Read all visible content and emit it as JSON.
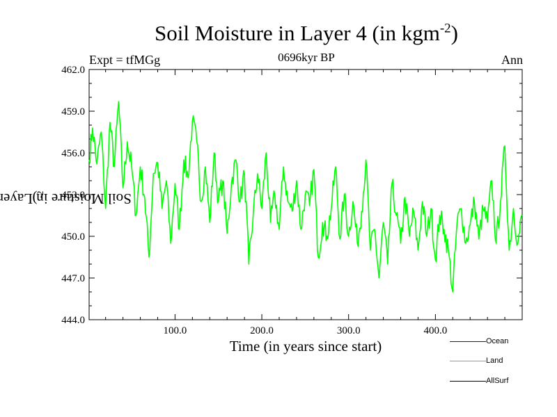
{
  "chart_data": {
    "type": "line",
    "title": "Soil Moisture in Layer 4 (in kgm",
    "title_superscript": "-2",
    "title_close": ")",
    "subtitle": "0696kyr BP",
    "left_label": "Expt = tfMGg",
    "right_label": "Ann",
    "xlabel": "Time (in years since start)",
    "ylabel": "Soil Moisture in Layer 4 (in kgm",
    "ylabel_superscript": "-2",
    "ylabel_close": ")",
    "xlim": [
      1,
      500
    ],
    "ylim": [
      444.0,
      462.0
    ],
    "xticks": [
      100,
      200,
      300,
      400
    ],
    "xtick_labels": [
      "100.0",
      "200.0",
      "300.0",
      "400.0"
    ],
    "yticks": [
      444.0,
      447.0,
      450.0,
      453.0,
      456.0,
      459.0,
      462.0
    ],
    "ytick_labels": [
      "444.0",
      "447.0",
      "450.0",
      "453.0",
      "456.0",
      "459.0",
      "462.0"
    ],
    "legend": [
      {
        "name": "Ocean",
        "color": "#0000ff"
      },
      {
        "name": "Land",
        "color": "#00ff00"
      },
      {
        "name": "AllSurf",
        "color": "#000000"
      }
    ],
    "series": [
      {
        "name": "Land",
        "color": "#00ff00",
        "x": [
          1,
          5,
          10,
          15,
          20,
          25,
          30,
          35,
          40,
          45,
          50,
          55,
          60,
          65,
          70,
          75,
          80,
          85,
          90,
          95,
          100,
          105,
          110,
          115,
          120,
          125,
          130,
          135,
          140,
          145,
          150,
          155,
          160,
          165,
          170,
          175,
          180,
          185,
          190,
          195,
          200,
          205,
          210,
          215,
          220,
          225,
          230,
          235,
          240,
          245,
          250,
          255,
          260,
          265,
          270,
          275,
          280,
          285,
          290,
          295,
          300,
          305,
          310,
          315,
          320,
          325,
          330,
          335,
          340,
          345,
          350,
          355,
          360,
          365,
          370,
          375,
          380,
          385,
          390,
          395,
          400,
          405,
          410,
          415,
          420,
          425,
          430,
          435,
          440,
          445,
          450,
          455,
          460,
          465,
          470,
          475,
          480,
          485,
          490,
          495,
          500
        ],
        "values": [
          455.5,
          457.8,
          455.2,
          457.5,
          452.0,
          458.2,
          455.0,
          459.7,
          453.5,
          456.8,
          455.0,
          451.5,
          455.0,
          452.8,
          448.5,
          454.5,
          455.3,
          452.0,
          454.0,
          449.5,
          453.8,
          450.5,
          455.5,
          454.2,
          458.3,
          456.8,
          452.5,
          455.0,
          451.0,
          456.0,
          452.5,
          454.0,
          450.2,
          453.8,
          455.5,
          452.5,
          454.5,
          448.0,
          451.5,
          454.5,
          452.0,
          456.0,
          451.0,
          453.0,
          450.5,
          455.0,
          452.5,
          451.8,
          454.0,
          450.5,
          453.0,
          452.2,
          454.8,
          448.5,
          451.0,
          450.0,
          452.0,
          455.0,
          449.8,
          453.0,
          450.0,
          452.5,
          449.5,
          451.8,
          455.5,
          449.0,
          450.5,
          447.0,
          451.0,
          448.0,
          453.8,
          451.5,
          449.5,
          452.8,
          450.0,
          451.8,
          449.0,
          452.5,
          450.0,
          452.0,
          448.3,
          451.5,
          450.5,
          449.0,
          446.0,
          451.0,
          452.0,
          449.5,
          450.8,
          452.5,
          449.8,
          452.0,
          451.0,
          454.0,
          449.5,
          452.5,
          456.5,
          449.0,
          452.0,
          449.5,
          451.5
        ]
      }
    ]
  }
}
